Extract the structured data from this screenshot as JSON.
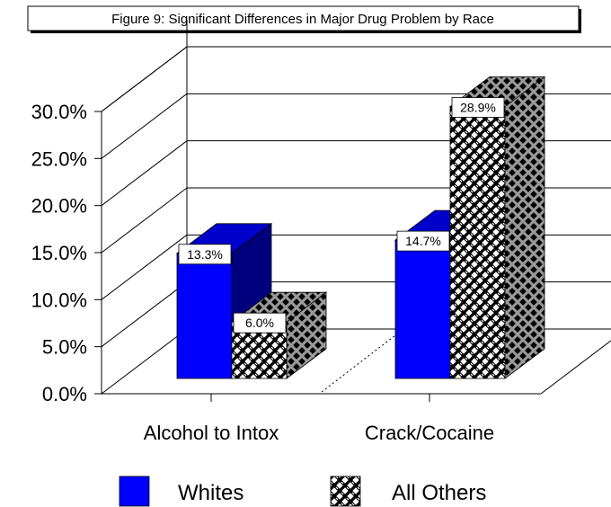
{
  "chart_data": {
    "type": "bar",
    "title": "Figure 9: Significant Differences in Major Drug Problem by Race",
    "categories": [
      "Alcohol to Intox",
      "Crack/Cocaine"
    ],
    "series": [
      {
        "name": "Whites",
        "values": [
          13.3,
          14.7
        ],
        "labels": [
          "13.3%",
          "14.7%"
        ],
        "color": "#0000ff",
        "pattern": "solid"
      },
      {
        "name": "All Others",
        "values": [
          6.0,
          28.9
        ],
        "labels": [
          "6.0%",
          "28.9%"
        ],
        "color": "#000000",
        "pattern": "basket-weave"
      }
    ],
    "y_ticks": [
      0,
      5,
      10,
      15,
      20,
      25,
      30
    ],
    "y_tick_labels": [
      "0.0%",
      "5.0%",
      "10.0%",
      "15.0%",
      "20.0%",
      "25.0%",
      "30.0%"
    ],
    "ylim": [
      0,
      30
    ],
    "xlabel": "",
    "ylabel": "",
    "grid": true,
    "legend_position": "bottom",
    "style": "3d-clustered"
  }
}
